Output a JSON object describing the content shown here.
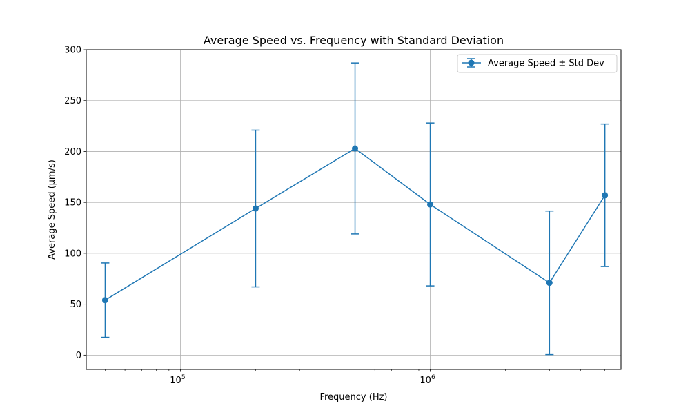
{
  "chart_data": {
    "type": "line",
    "title": "Average Speed vs. Frequency with Standard Deviation",
    "xlabel": "Frequency (Hz)",
    "ylabel": "Average Speed (µm/s)",
    "xscale": "log",
    "xlim": [
      42000,
      5800000
    ],
    "ylim": [
      -14,
      300
    ],
    "grid": true,
    "legend_position": "top-right",
    "color": "#1f77b4",
    "x_ticks": [
      {
        "base": "10",
        "exp": "5",
        "value": 100000
      },
      {
        "base": "10",
        "exp": "6",
        "value": 1000000
      }
    ],
    "y_ticks": [
      0,
      50,
      100,
      150,
      200,
      250,
      300
    ],
    "series": [
      {
        "name": "Average Speed ± Std Dev",
        "x": [
          50000,
          200000,
          500000,
          1000000,
          3000000,
          5000000
        ],
        "y": [
          54,
          144,
          203,
          148,
          71,
          157
        ],
        "error": [
          36.5,
          77,
          84,
          80,
          70.5,
          70
        ]
      }
    ]
  }
}
